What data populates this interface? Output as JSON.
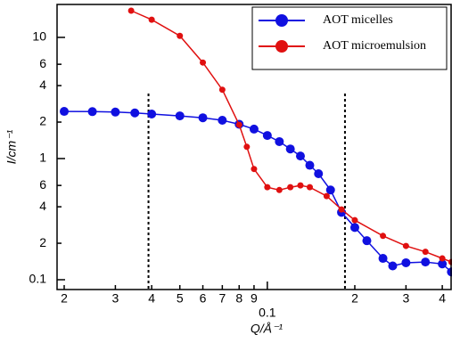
{
  "chart_data": {
    "type": "scatter",
    "xlabel": "Q/Å⁻¹",
    "ylabel": "I/cm⁻¹",
    "xscale": "log",
    "yscale": "log",
    "xlim": [
      0.0189,
      0.432
    ],
    "ylim": [
      0.083,
      18.7
    ],
    "xticks": [
      {
        "value": 0.02,
        "label": "2"
      },
      {
        "value": 0.03,
        "label": "3"
      },
      {
        "value": 0.04,
        "label": "4"
      },
      {
        "value": 0.05,
        "label": "5"
      },
      {
        "value": 0.06,
        "label": "6"
      },
      {
        "value": 0.07,
        "label": "7"
      },
      {
        "value": 0.08,
        "label": "8"
      },
      {
        "value": 0.09,
        "label": "9"
      },
      0.1,
      {
        "value": 0.2,
        "label": "2"
      },
      {
        "value": 0.3,
        "label": "3"
      },
      {
        "value": 0.4,
        "label": "4"
      }
    ],
    "yticks": [
      0.1,
      {
        "value": 0.2,
        "label": "2"
      },
      {
        "value": 0.4,
        "label": "4"
      },
      {
        "value": 0.6,
        "label": "6"
      },
      1,
      {
        "value": 2,
        "label": "2"
      },
      {
        "value": 4,
        "label": "4"
      },
      {
        "value": 6,
        "label": "6"
      },
      10
    ],
    "vlines": [
      0.039,
      0.185
    ],
    "legend": "upper right",
    "series": [
      {
        "name": "AOT micelles",
        "color": "#1010e0",
        "x": [
          0.02,
          0.025,
          0.03,
          0.035,
          0.04,
          0.05,
          0.06,
          0.07,
          0.08,
          0.09,
          0.1,
          0.11,
          0.12,
          0.13,
          0.14,
          0.15,
          0.165,
          0.18,
          0.2,
          0.22,
          0.25,
          0.27,
          0.3,
          0.35,
          0.4,
          0.43
        ],
        "values": [
          2.45,
          2.44,
          2.42,
          2.38,
          2.33,
          2.25,
          2.17,
          2.07,
          1.92,
          1.75,
          1.55,
          1.38,
          1.2,
          1.05,
          0.88,
          0.75,
          0.55,
          0.36,
          0.27,
          0.21,
          0.15,
          0.13,
          0.138,
          0.14,
          0.135,
          0.116
        ]
      },
      {
        "name": "AOT microemulsion",
        "color": "#e01010",
        "x": [
          0.034,
          0.04,
          0.05,
          0.06,
          0.07,
          0.08,
          0.085,
          0.09,
          0.1,
          0.11,
          0.12,
          0.13,
          0.14,
          0.16,
          0.18,
          0.2,
          0.25,
          0.3,
          0.35,
          0.4,
          0.43
        ],
        "values": [
          16.6,
          14,
          10.3,
          6.2,
          3.7,
          1.9,
          1.25,
          0.82,
          0.58,
          0.55,
          0.58,
          0.6,
          0.58,
          0.49,
          0.38,
          0.31,
          0.23,
          0.19,
          0.17,
          0.15,
          0.14
        ]
      }
    ]
  }
}
